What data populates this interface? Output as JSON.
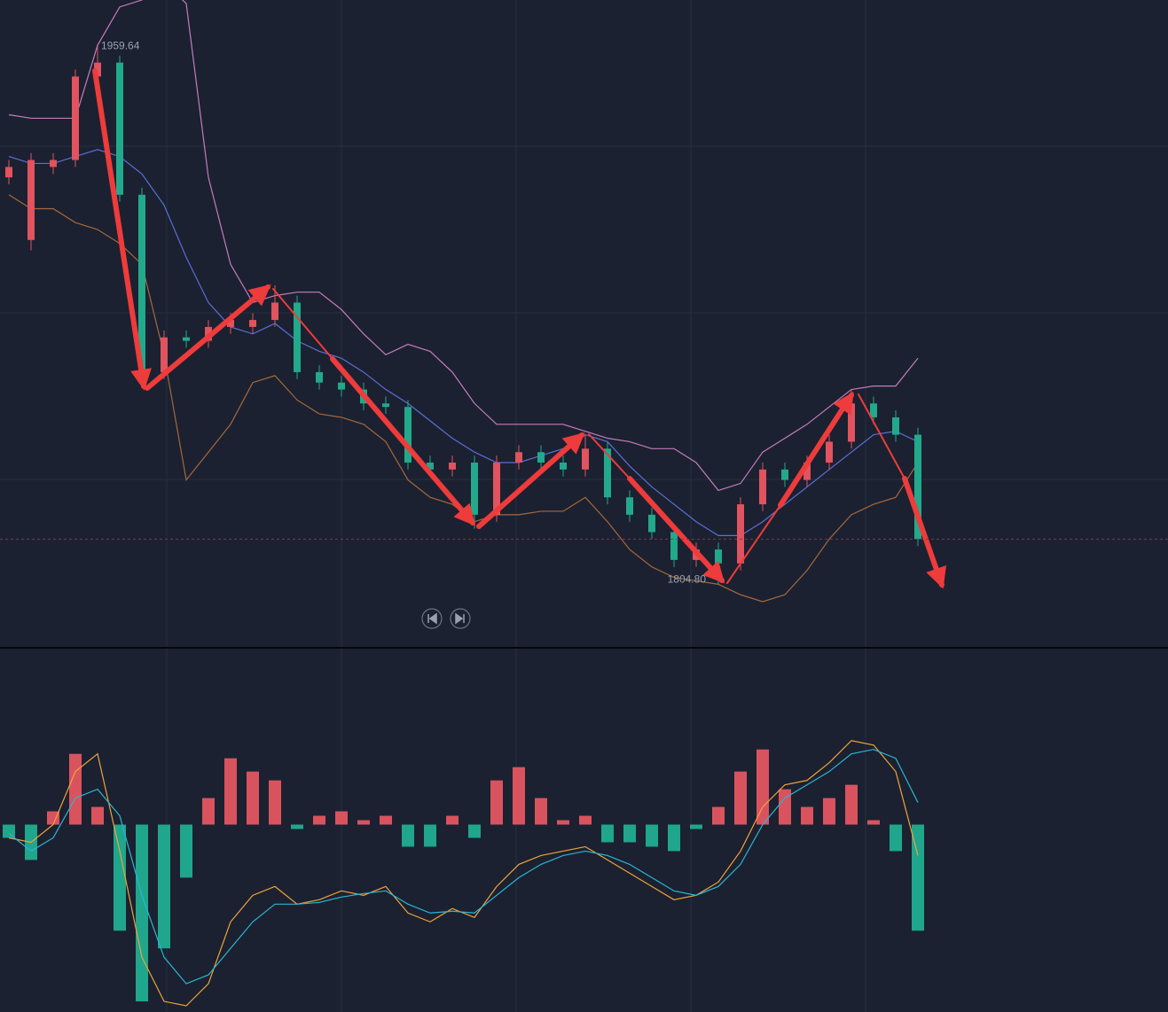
{
  "chart_data": [
    {
      "type": "candlestick",
      "open": [
        1922,
        1904,
        1925,
        1927,
        1951,
        1955,
        1917,
        1866,
        1876,
        1875,
        1879,
        1879,
        1881,
        1886,
        1866,
        1863,
        1861,
        1857,
        1856,
        1840,
        1838,
        1840,
        1825,
        1840,
        1843,
        1840,
        1838,
        1844,
        1830,
        1825,
        1820,
        1812,
        1815,
        1811,
        1828,
        1838,
        1835,
        1840,
        1846,
        1857,
        1853,
        1848
      ],
      "high": [
        1927,
        1929,
        1929,
        1953,
        1959.64,
        1957,
        1919,
        1878,
        1878,
        1881,
        1883,
        1883,
        1891,
        1888,
        1868,
        1865,
        1863,
        1859,
        1858,
        1842,
        1842,
        1842,
        1842,
        1845,
        1845,
        1842,
        1848,
        1846,
        1832,
        1827,
        1822,
        1817,
        1817,
        1830,
        1840,
        1840,
        1842,
        1848,
        1861,
        1859,
        1855,
        1850
      ],
      "low": [
        1920,
        1901,
        1923,
        1925,
        1949,
        1915,
        1863,
        1864,
        1873,
        1873,
        1877,
        1877,
        1879,
        1864,
        1861,
        1859,
        1855,
        1854,
        1838,
        1836,
        1836,
        1821,
        1823,
        1838,
        1838,
        1836,
        1836,
        1828,
        1823,
        1818,
        1810,
        1810,
        1804.8,
        1809,
        1826,
        1833,
        1833,
        1838,
        1844,
        1851,
        1846,
        1816
      ],
      "close": [
        1925,
        1927,
        1927,
        1951,
        1955,
        1917,
        1866,
        1876,
        1875,
        1879,
        1881,
        1881,
        1886,
        1866,
        1863,
        1861,
        1857,
        1856,
        1840,
        1838,
        1840,
        1825,
        1840,
        1843,
        1840,
        1838,
        1844,
        1830,
        1825,
        1820,
        1812,
        1815,
        1811,
        1828,
        1838,
        1835,
        1840,
        1846,
        1857,
        1853,
        1848,
        1818
      ],
      "up_color": "#e0535f",
      "down_color": "#22a98b",
      "bands": [
        {
          "color": "#c57bbd",
          "values": [
            1940,
            1939,
            1939,
            1939,
            1960,
            1971,
            1973,
            1978,
            1972,
            1922,
            1897,
            1886,
            1888,
            1889,
            1889,
            1884,
            1877,
            1871,
            1874,
            1872,
            1866,
            1857,
            1851,
            1851,
            1851,
            1851,
            1849,
            1847,
            1846,
            1844,
            1844,
            1840,
            1832,
            1834,
            1843,
            1847,
            1851,
            1856,
            1861,
            1862,
            1862,
            1870
          ]
        },
        {
          "color": "#5a6fd6",
          "values": [
            1928,
            1926,
            1926,
            1928,
            1930,
            1928,
            1923,
            1914,
            1899,
            1886,
            1879,
            1877,
            1880,
            1875,
            1872,
            1870,
            1866,
            1861,
            1857,
            1852,
            1847,
            1843,
            1840,
            1840,
            1842,
            1844,
            1848,
            1846,
            1839,
            1833,
            1828,
            1823,
            1819,
            1819,
            1823,
            1828,
            1833,
            1838,
            1843,
            1848,
            1849,
            1846
          ]
        },
        {
          "color": "#a7683d",
          "values": [
            1917,
            1913,
            1913,
            1909,
            1907,
            1903,
            1897,
            1871,
            1835,
            1843,
            1851,
            1863,
            1865,
            1858,
            1854,
            1853,
            1851,
            1846,
            1835,
            1830,
            1828,
            1823,
            1825,
            1825,
            1826,
            1826,
            1830,
            1823,
            1815,
            1810,
            1807,
            1806,
            1805,
            1802,
            1800,
            1802,
            1809,
            1818,
            1825,
            1828,
            1830,
            1840
          ]
        }
      ],
      "ylim": [
        1787,
        1973
      ],
      "annotations": [
        {
          "value": 1959.64,
          "label": "1959.64"
        },
        {
          "value": 1804.8,
          "label": "1804.80"
        }
      ]
    },
    {
      "type": "macd",
      "histogram": [
        -1.5,
        -4,
        1.5,
        8,
        2,
        -12,
        -20,
        -14,
        -6,
        3,
        7.5,
        6,
        5,
        -0.5,
        1,
        1.5,
        0.5,
        1,
        -2.5,
        -2.5,
        1,
        -1.5,
        5,
        6.5,
        3,
        0.5,
        1,
        -2,
        -2,
        -2.5,
        -3,
        -0.5,
        2,
        6,
        8.5,
        4,
        2,
        3,
        4.5,
        0.5,
        -3,
        -12
      ],
      "up_color": "#d9535f",
      "down_color": "#1fa68c",
      "lines": [
        {
          "color": "#f0a23a",
          "values": [
            -1.5,
            -2,
            0,
            6,
            8,
            -3,
            -15,
            -20,
            -20.5,
            -18,
            -11,
            -8,
            -7,
            -9,
            -8.5,
            -7.5,
            -8,
            -7,
            -10,
            -11,
            -9.5,
            -10.5,
            -7,
            -4.5,
            -3.5,
            -3,
            -2.5,
            -4,
            -5.5,
            -7,
            -8.5,
            -8,
            -6.5,
            -3,
            2,
            4.5,
            5,
            7,
            9.5,
            9,
            6,
            -3.5
          ]
        },
        {
          "color": "#2bb5d6",
          "values": [
            -1,
            -3,
            -1.5,
            3,
            4,
            1,
            -8,
            -15,
            -18,
            -17,
            -14,
            -11,
            -9,
            -9,
            -8.8,
            -8.2,
            -7.8,
            -7.5,
            -9,
            -10,
            -9.8,
            -10,
            -8,
            -6,
            -4.5,
            -3.5,
            -3,
            -3.5,
            -4.5,
            -6,
            -7.5,
            -8,
            -7,
            -4.5,
            0,
            3,
            4.5,
            6,
            8,
            8.5,
            7.5,
            2.5
          ]
        }
      ],
      "ylim": [
        -21.2,
        19.9
      ]
    }
  ]
}
